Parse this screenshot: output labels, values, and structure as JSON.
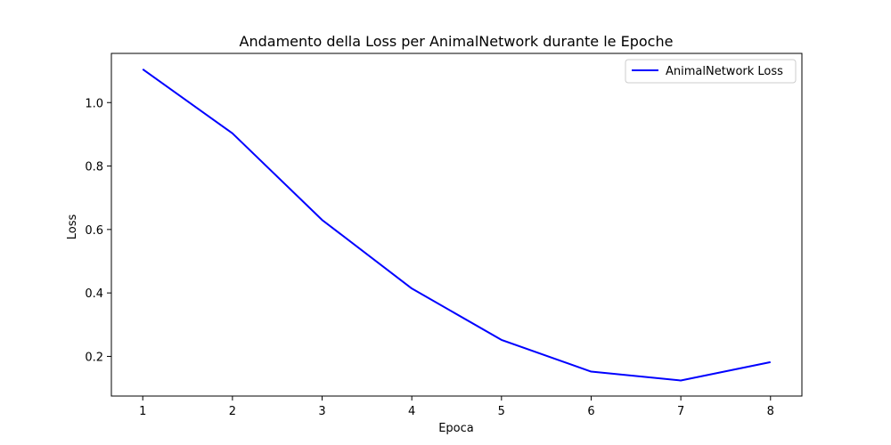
{
  "chart_data": {
    "type": "line",
    "title": "Andamento della Loss per AnimalNetwork durante le Epoche",
    "xlabel": "Epoca",
    "ylabel": "Loss",
    "x": [
      1,
      2,
      3,
      4,
      5,
      6,
      7,
      8
    ],
    "series": [
      {
        "name": "AnimalNetwork Loss",
        "color": "#0000ff",
        "values": [
          1.105,
          0.903,
          0.63,
          0.414,
          0.252,
          0.152,
          0.124,
          0.182
        ]
      }
    ],
    "xlim": [
      0.65,
      8.35
    ],
    "ylim": [
      0.075,
      1.155
    ],
    "xticks": [
      1,
      2,
      3,
      4,
      5,
      6,
      7,
      8
    ],
    "xtick_labels": [
      "1",
      "2",
      "3",
      "4",
      "5",
      "6",
      "7",
      "8"
    ],
    "yticks": [
      0.2,
      0.4,
      0.6,
      0.8,
      1.0
    ],
    "ytick_labels": [
      "0.2",
      "0.4",
      "0.6",
      "0.8",
      "1.0"
    ],
    "grid": false,
    "legend_position": "top-right"
  }
}
